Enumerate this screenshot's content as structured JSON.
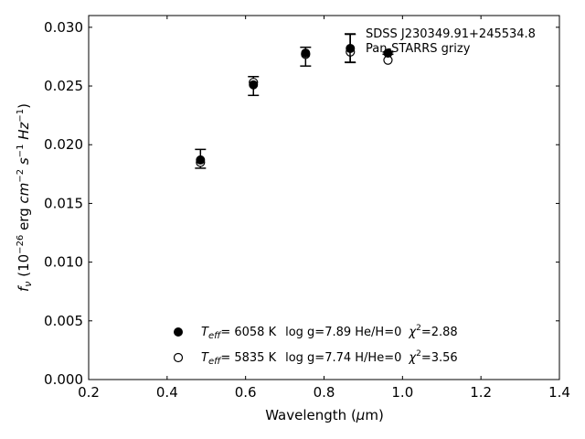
{
  "chart_data": {
    "type": "scatter",
    "title": "",
    "object_name": "SDSS J230349.91+245534.8",
    "xlabel": "Wavelength (μm)",
    "ylabel": "fν (10⁻²⁶ erg cm⁻² s⁻¹ Hz⁻¹)",
    "xlim": [
      0.2,
      1.4
    ],
    "ylim": [
      0.0,
      0.031
    ],
    "xticks": [
      "0.2",
      "0.4",
      "0.6",
      "0.8",
      "1.0",
      "1.2",
      "1.4"
    ],
    "yticks": [
      "0.000",
      "0.005",
      "0.010",
      "0.015",
      "0.020",
      "0.025",
      "0.030"
    ],
    "grid": false,
    "legend_position": "top-right",
    "series": [
      {
        "name": "Pan-STARRS grizy",
        "marker": "errorbar",
        "color": "#000000",
        "x": [
          0.485,
          0.62,
          0.753,
          0.867,
          0.963
        ],
        "y": [
          0.0188,
          0.025,
          0.0275,
          0.0282,
          0.0278
        ],
        "yerr": [
          0.0008,
          0.0008,
          0.0008,
          0.0012,
          0.0001
        ]
      },
      {
        "name": "Teff= 6058 K  log g=7.89  He/H=0  χ²=2.88",
        "marker": "filled-circle",
        "color": "#000000",
        "x": [
          0.485,
          0.62,
          0.753,
          0.867,
          0.963
        ],
        "y": [
          0.0187,
          0.0251,
          0.0278,
          0.0282,
          0.0278
        ]
      },
      {
        "name": "Teff= 5835 K  log g=7.74  H/He=0  χ²=3.56",
        "marker": "open-circle",
        "color": "#000000",
        "x": [
          0.485,
          0.62,
          0.753,
          0.867,
          0.963
        ],
        "y": [
          0.0185,
          0.0253,
          0.0277,
          0.0279,
          0.0272
        ]
      }
    ]
  },
  "legend": {
    "object": "SDSS J230349.91+245534.8",
    "photometry": "Pan-STARRS grizy"
  },
  "models": [
    {
      "teff_prefix": "T",
      "teff_sub": "eff",
      "teff_value": "=  6058 K",
      "params": "log g=7.89  He/H=0",
      "chi_sym": "χ",
      "chi_sup": "2",
      "chi_value": "=2.88"
    },
    {
      "teff_prefix": "T",
      "teff_sub": "eff",
      "teff_value": "=  5835 K",
      "params": "log g=7.74  H/He=0",
      "chi_sym": "χ",
      "chi_sup": "2",
      "chi_value": "=3.56"
    }
  ],
  "axis_text": {
    "x_main": "Wavelength (",
    "x_mu": "μ",
    "x_end": "m)",
    "y_f": "f",
    "y_nu": "ν",
    "y_open": " (10",
    "y_exp1": "−26",
    "y_erg": " erg ",
    "y_cm": "cm",
    "y_exp2": "−2",
    "y_s": " s",
    "y_exp3": "−1",
    "y_hz": " Hz",
    "y_exp4": "−1",
    "y_close": ")"
  }
}
